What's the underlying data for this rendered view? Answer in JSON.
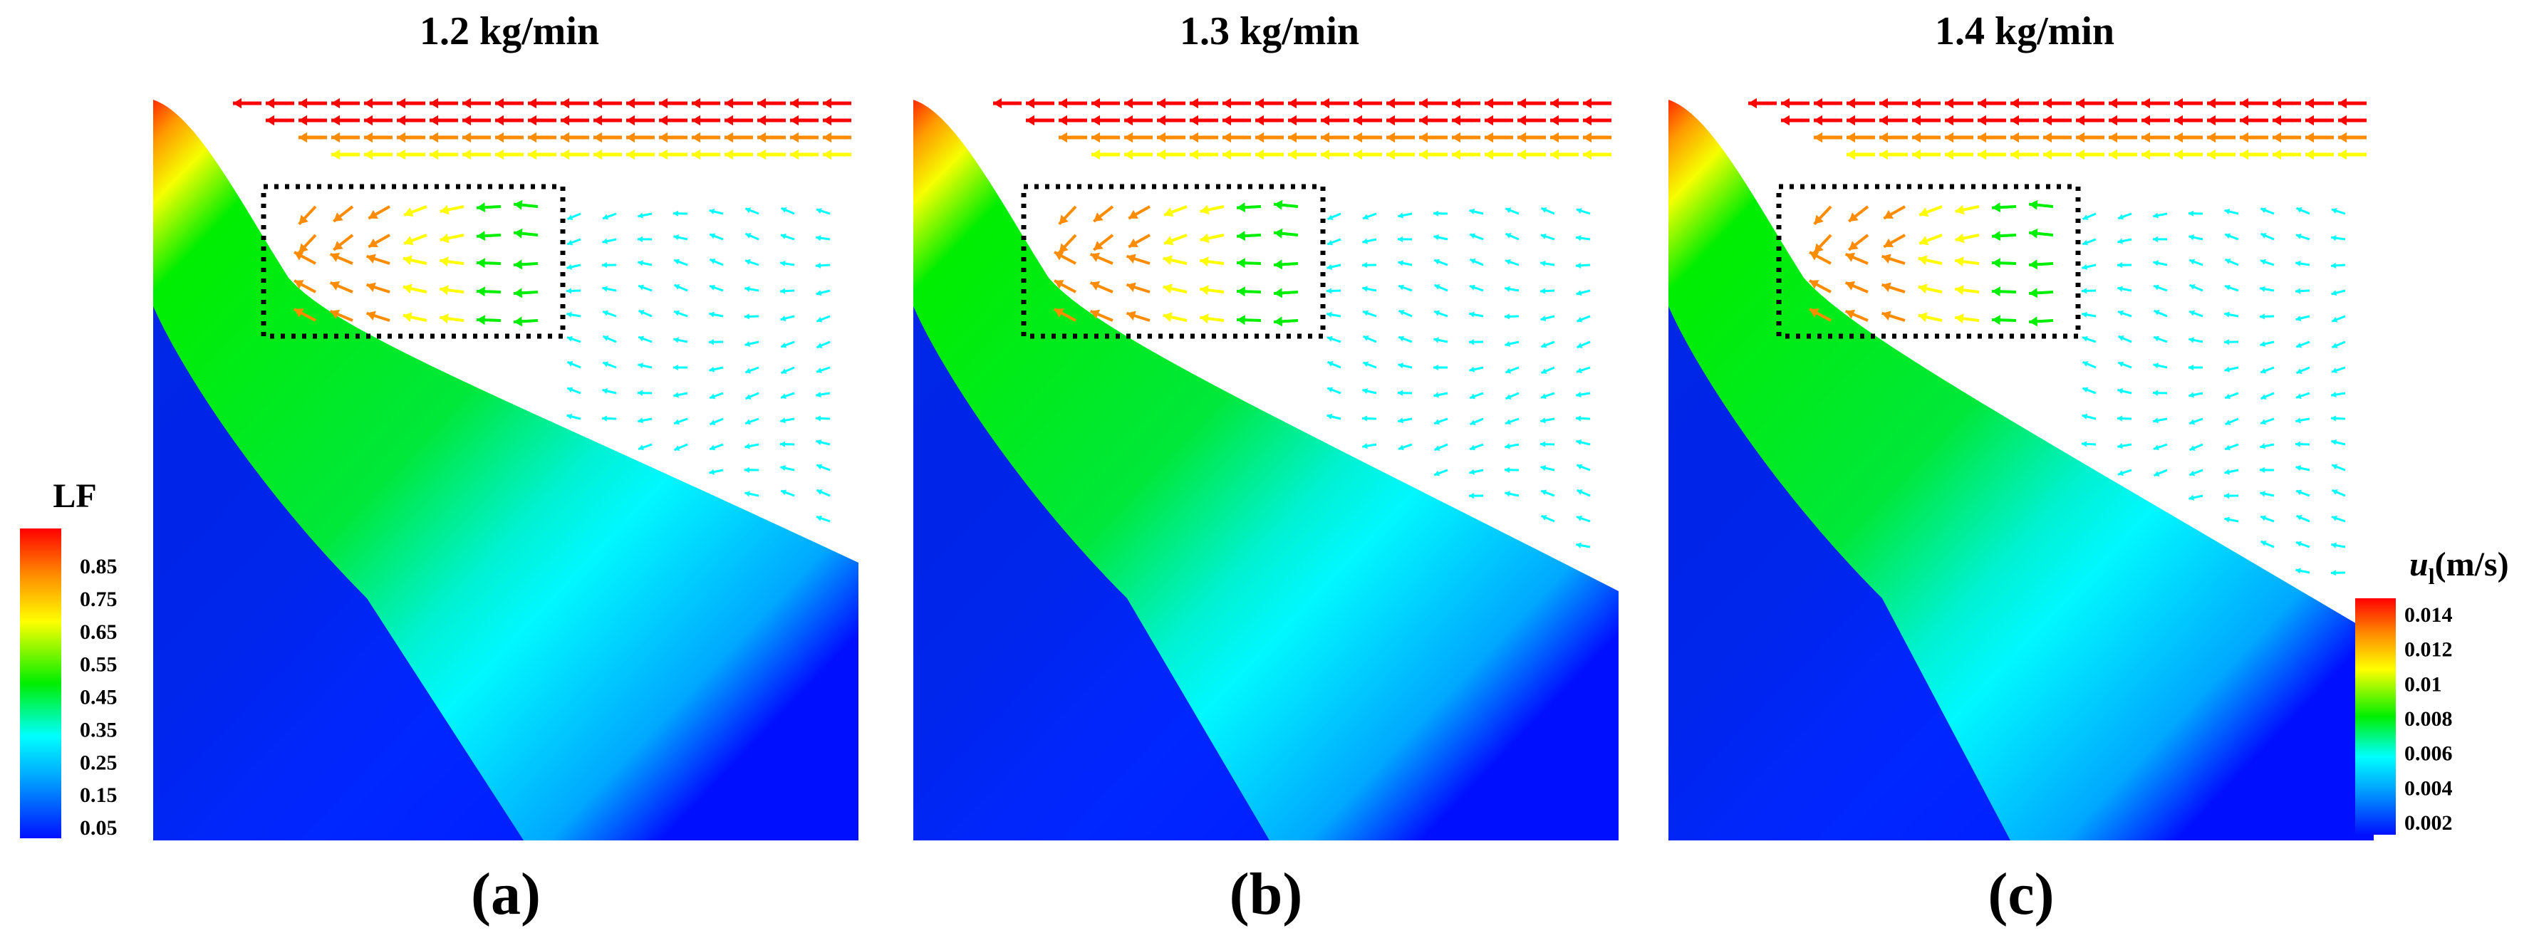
{
  "figure": {
    "panels": [
      {
        "title": "1.2 kg/min",
        "label": "(a)",
        "box": "dotted-rectangle"
      },
      {
        "title": "1.3 kg/min",
        "label": "(b)",
        "box": "dotted-rectangle"
      },
      {
        "title": "1.4 kg/min",
        "label": "(c)",
        "box": "dotted-rectangle"
      }
    ],
    "colorbar_lf": {
      "title": "LF",
      "ticks": [
        "0.85",
        "0.75",
        "0.65",
        "0.55",
        "0.45",
        "0.35",
        "0.25",
        "0.15",
        "0.05"
      ]
    },
    "colorbar_u": {
      "title_symbol": "u",
      "title_subscript": "l",
      "title_unit": "(m/s)",
      "ticks": [
        "0.014",
        "0.012",
        "0.01",
        "0.008",
        "0.006",
        "0.004",
        "0.002"
      ]
    },
    "colors": {
      "blue": "#0010ff",
      "cyan": "#00ffff",
      "green": "#00ee00",
      "yellow": "#ffff00",
      "orange": "#ff8c00",
      "red": "#ff0000"
    }
  }
}
